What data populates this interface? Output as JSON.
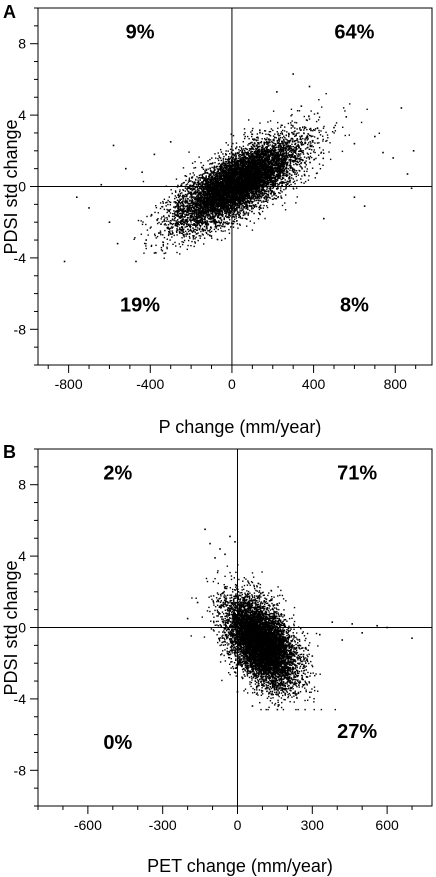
{
  "chart_data": [
    {
      "type": "scatter",
      "panel_label": "A",
      "xlabel": "P change (mm/year)",
      "ylabel": "PDSI std change",
      "xlim": [
        -950,
        980
      ],
      "ylim": [
        -10,
        10
      ],
      "x_ticks": [
        -800,
        -400,
        0,
        400,
        800
      ],
      "x_tick_labels": [
        "-800",
        "-400",
        "0",
        "400",
        "800"
      ],
      "y_ticks": [
        -8,
        -4,
        0,
        4,
        8
      ],
      "y_tick_labels": [
        "-8",
        "-4",
        "0",
        "4",
        "8"
      ],
      "x_minor_step": 100,
      "y_minor_step": 1,
      "quadrant_lines": {
        "x": 0,
        "y": 0
      },
      "quadrant_labels": [
        {
          "text": "9%",
          "x": -450,
          "y": 8.3
        },
        {
          "text": "64%",
          "x": 600,
          "y": 8.3
        },
        {
          "text": "19%",
          "x": -450,
          "y": -7.0
        },
        {
          "text": "8%",
          "x": 600,
          "y": -7.0
        }
      ],
      "cloud": {
        "n": 9000,
        "x_mean": 30,
        "x_std": 150,
        "slope": 0.006,
        "y_noise": 0.85,
        "x_min": -820,
        "x_max": 900,
        "y_min": -4.6,
        "y_max": 6.3,
        "seed": 11
      },
      "points": [
        {
          "x": -820,
          "y": -4.2
        },
        {
          "x": -760,
          "y": -0.6
        },
        {
          "x": -700,
          "y": -1.2
        },
        {
          "x": -640,
          "y": 0.1
        },
        {
          "x": -600,
          "y": -2.0
        },
        {
          "x": -580,
          "y": 2.3
        },
        {
          "x": -560,
          "y": -3.2
        },
        {
          "x": -520,
          "y": 1.0
        },
        {
          "x": -470,
          "y": -4.2
        },
        {
          "x": -440,
          "y": 0.8
        },
        {
          "x": -420,
          "y": -3.0
        },
        {
          "x": -380,
          "y": 1.8
        },
        {
          "x": -350,
          "y": -2.6
        },
        {
          "x": -300,
          "y": 2.5
        },
        {
          "x": 220,
          "y": 5.3
        },
        {
          "x": 300,
          "y": 6.3
        },
        {
          "x": 340,
          "y": 4.5
        },
        {
          "x": 380,
          "y": 5.6
        },
        {
          "x": 420,
          "y": 4.1
        },
        {
          "x": 450,
          "y": -1.8
        },
        {
          "x": 500,
          "y": 3.3
        },
        {
          "x": 560,
          "y": 3.9
        },
        {
          "x": 600,
          "y": 2.4
        },
        {
          "x": 650,
          "y": -1.1
        },
        {
          "x": 700,
          "y": 2.8
        },
        {
          "x": 740,
          "y": 1.9
        },
        {
          "x": 790,
          "y": 1.6
        },
        {
          "x": 830,
          "y": 4.4
        },
        {
          "x": 860,
          "y": 0.7
        },
        {
          "x": 880,
          "y": -0.1
        },
        {
          "x": 890,
          "y": 2.0
        },
        {
          "x": 600,
          "y": -0.6
        }
      ]
    },
    {
      "type": "scatter",
      "panel_label": "B",
      "xlabel": "PET change (mm/year)",
      "ylabel": "PDSI std change",
      "xlim": [
        -800,
        780
      ],
      "ylim": [
        -10,
        10
      ],
      "x_ticks": [
        -600,
        -300,
        0,
        300,
        600
      ],
      "x_tick_labels": [
        "-600",
        "-300",
        "0",
        "300",
        "600"
      ],
      "y_ticks": [
        -8,
        -4,
        0,
        4,
        8
      ],
      "y_tick_labels": [
        "-8",
        "-4",
        "0",
        "4",
        "8"
      ],
      "x_minor_step": 100,
      "y_minor_step": 1,
      "quadrant_lines": {
        "x": 0,
        "y": 0
      },
      "quadrant_labels": [
        {
          "text": "2%",
          "x": -480,
          "y": 8.3
        },
        {
          "text": "71%",
          "x": 480,
          "y": 8.3
        },
        {
          "text": "0%",
          "x": -480,
          "y": -6.8
        },
        {
          "text": "27%",
          "x": 480,
          "y": -6.2
        }
      ],
      "cloud": {
        "n": 8000,
        "x_mean": 95,
        "x_std": 70,
        "slope": -0.009,
        "y_noise": 1.05,
        "x_min": -200,
        "x_max": 700,
        "y_min": -4.6,
        "y_max": 5.6,
        "seed": 23
      },
      "points": [
        {
          "x": -200,
          "y": 0.5
        },
        {
          "x": -160,
          "y": 1.4
        },
        {
          "x": -130,
          "y": 5.5
        },
        {
          "x": -110,
          "y": 4.7
        },
        {
          "x": -90,
          "y": 3.9
        },
        {
          "x": -70,
          "y": 4.4
        },
        {
          "x": -50,
          "y": 4.1
        },
        {
          "x": -30,
          "y": 5.1
        },
        {
          "x": -10,
          "y": 4.8
        },
        {
          "x": 0,
          "y": -3.6
        },
        {
          "x": 60,
          "y": -4.4
        },
        {
          "x": 160,
          "y": -4.6
        },
        {
          "x": 260,
          "y": -2.9
        },
        {
          "x": 300,
          "y": -1.6
        },
        {
          "x": 330,
          "y": -0.4
        },
        {
          "x": 380,
          "y": 0.3
        },
        {
          "x": 420,
          "y": -0.7
        },
        {
          "x": 460,
          "y": 0.2
        },
        {
          "x": 500,
          "y": -0.3
        },
        {
          "x": 560,
          "y": 0.1
        },
        {
          "x": 600,
          "y": 0.0
        },
        {
          "x": 700,
          "y": -0.6
        }
      ]
    }
  ]
}
